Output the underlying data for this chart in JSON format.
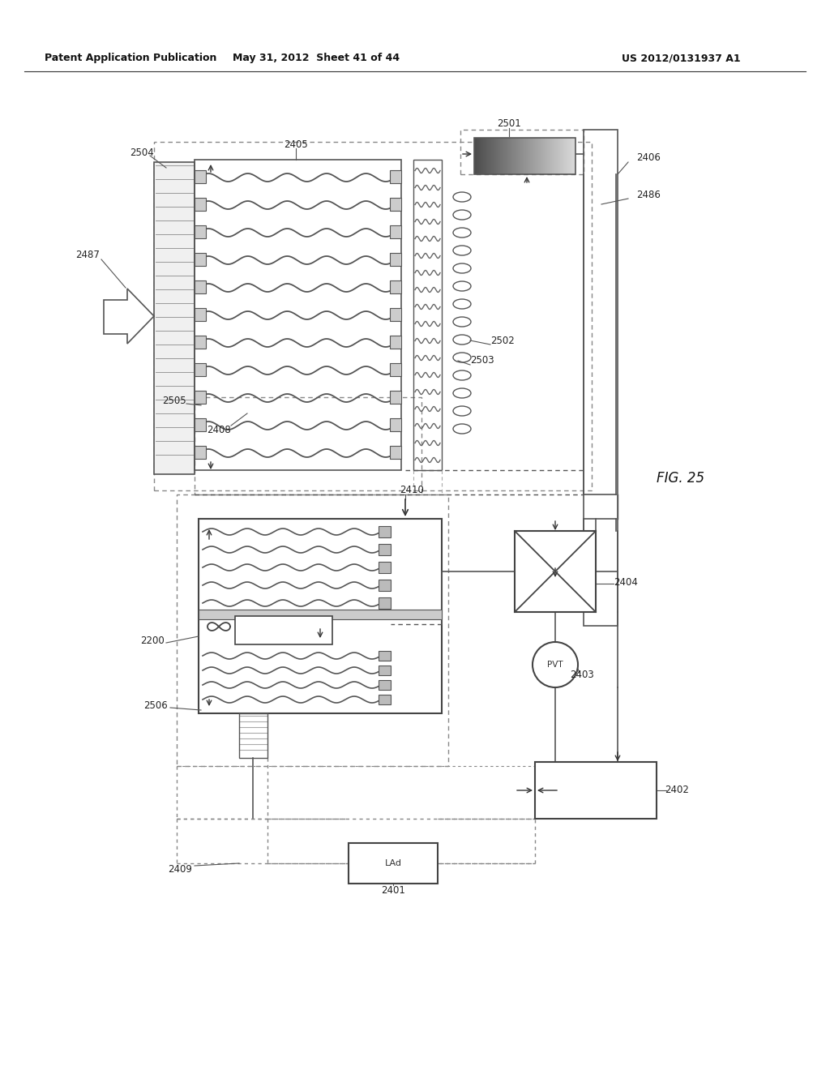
{
  "title_left": "Patent Application Publication",
  "title_mid": "May 31, 2012  Sheet 41 of 44",
  "title_right": "US 2012/0131937 A1",
  "fig_label": "FIG. 25",
  "bg_color": "#ffffff"
}
